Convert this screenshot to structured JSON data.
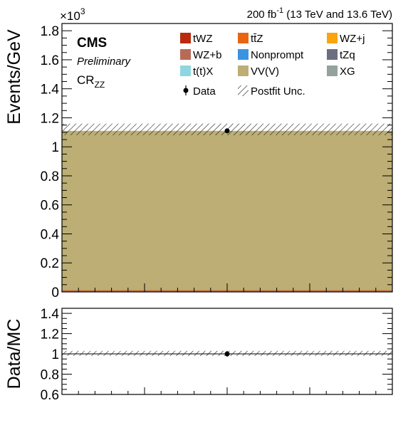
{
  "header": {
    "experiment": "CMS",
    "status": "Preliminary",
    "region_main": "CR",
    "region_sub": "ZZ",
    "lumi_value": "200 fb",
    "lumi_exp": "-1",
    "lumi_energy": " (13 TeV and 13.6 TeV)",
    "scale_base": "×10",
    "scale_exp": "3"
  },
  "legend": {
    "items": [
      {
        "label": "tWZ",
        "color": "#b92b0f"
      },
      {
        "label": "tt̄Z",
        "color": "#e8660f"
      },
      {
        "label": "WZ+j",
        "color": "#f8a50f"
      },
      {
        "label": "WZ+b",
        "color": "#b76b57"
      },
      {
        "label": "Nonprompt",
        "color": "#3a93e0"
      },
      {
        "label": "tZq",
        "color": "#6c6f80"
      },
      {
        "label": "t(t)X",
        "color": "#8fd7e0"
      },
      {
        "label": "VV(V)",
        "color": "#bcae74"
      },
      {
        "label": "XG",
        "color": "#93a29c"
      }
    ],
    "data_label": "Data",
    "unc_label": "Postfit Unc."
  },
  "chart_data": [
    {
      "type": "bar",
      "panel": "main",
      "ylabel": "Events/GeV",
      "ylim": [
        0,
        1.85
      ],
      "yticks": [
        "0",
        "0.2",
        "0.4",
        "0.6",
        "0.8",
        "1",
        "1.2",
        "1.4",
        "1.6",
        "1.8"
      ],
      "stack": [
        {
          "name": "tWZ",
          "value": 0.0005
        },
        {
          "name": "WZ+b",
          "value": 0.0005
        },
        {
          "name": "tt̄Z",
          "value": 0.012
        },
        {
          "name": "Nonprompt",
          "value": 0.0005
        },
        {
          "name": "WZ+j",
          "value": 0.001
        },
        {
          "name": "tZq",
          "value": 0.0005
        },
        {
          "name": "t(t)X",
          "value": 0.0005
        },
        {
          "name": "XG",
          "value": 0.0005
        },
        {
          "name": "VV(V)",
          "value": 1.094
        }
      ],
      "total_prediction": 1.11,
      "uncertainty": [
        1.08,
        1.16
      ],
      "data": 1.11,
      "grid": false
    },
    {
      "type": "scatter",
      "panel": "ratio",
      "ylabel": "Data/MC",
      "ylim": [
        0.6,
        1.45
      ],
      "yticks": [
        "0.6",
        "0.8",
        "1",
        "1.2",
        "1.4"
      ],
      "ratio": 1.0,
      "ratio_uncertainty": [
        0.98,
        1.03
      ],
      "grid": false
    }
  ]
}
